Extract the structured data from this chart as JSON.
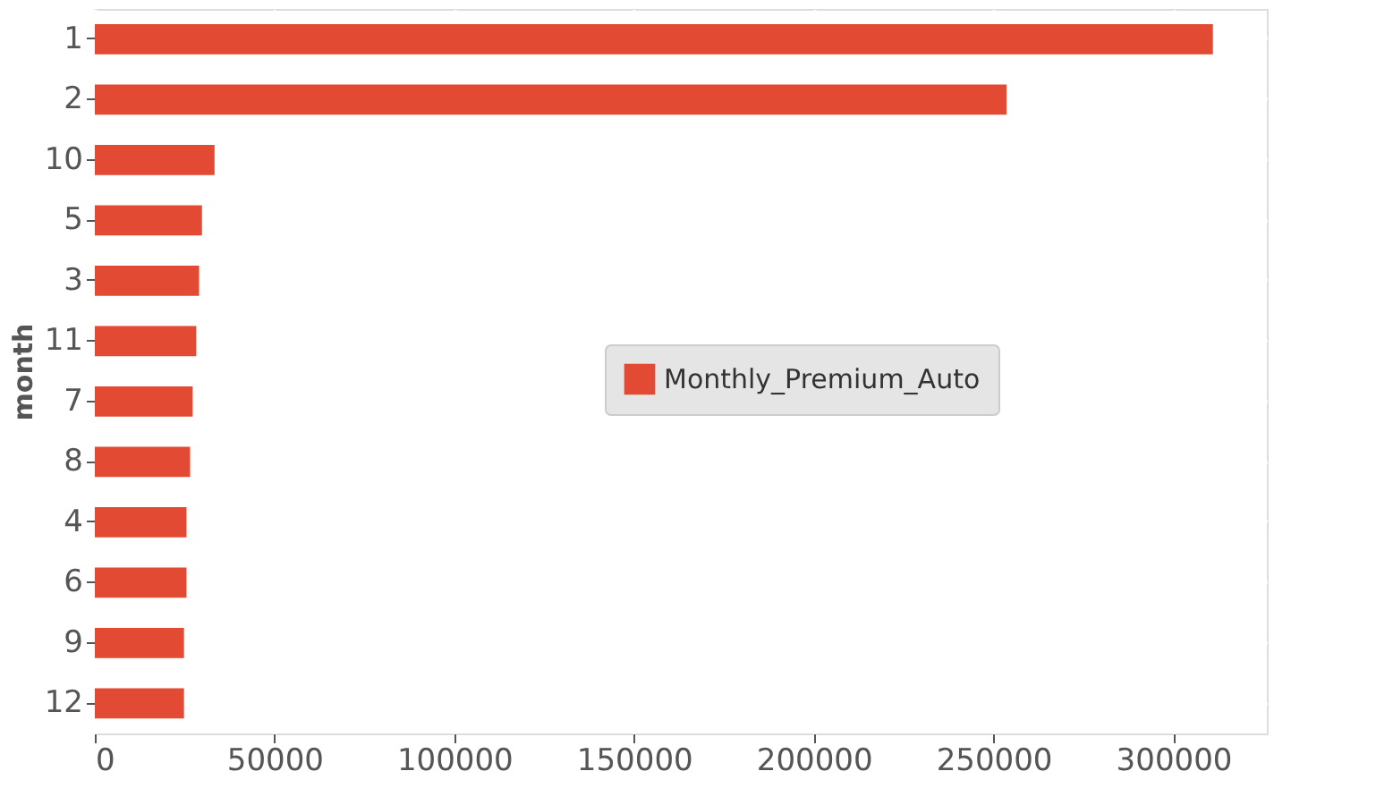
{
  "chart_data": {
    "type": "bar",
    "orientation": "horizontal",
    "ylabel": "month",
    "categories": [
      "1",
      "2",
      "10",
      "5",
      "3",
      "11",
      "7",
      "8",
      "4",
      "6",
      "9",
      "12"
    ],
    "series": [
      {
        "name": "Monthly_Premium_Auto",
        "color": "#e24a33",
        "values": [
          311000,
          253600,
          33300,
          29800,
          29000,
          28200,
          27200,
          26500,
          25500,
          25500,
          24800,
          24800
        ]
      }
    ],
    "xlim": [
      0,
      326000
    ],
    "xticks": [
      0,
      50000,
      100000,
      150000,
      200000,
      250000,
      300000
    ],
    "grid": true,
    "legend": "center right"
  }
}
